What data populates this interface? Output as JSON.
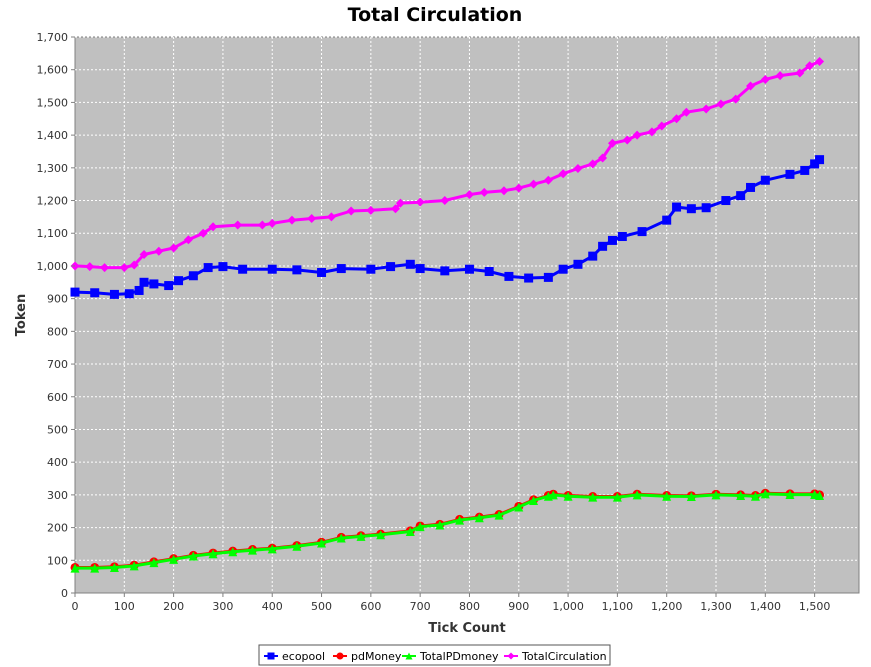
{
  "chart_data": {
    "type": "line",
    "title": "Total Circulation",
    "xlabel": "Tick Count",
    "ylabel": "Token",
    "xlim": [
      0,
      1590
    ],
    "ylim": [
      0,
      1700
    ],
    "xticks": [
      "0",
      "100",
      "200",
      "300",
      "400",
      "500",
      "600",
      "700",
      "800",
      "900",
      "1,000",
      "1,100",
      "1,200",
      "1,300",
      "1,400",
      "1,500"
    ],
    "yticks": [
      "0",
      "100",
      "200",
      "300",
      "400",
      "500",
      "600",
      "700",
      "800",
      "900",
      "1,000",
      "1,100",
      "1,200",
      "1,300",
      "1,400",
      "1,500",
      "1,600",
      "1,700"
    ],
    "grid": true,
    "legend": "bottom",
    "series": [
      {
        "name": "ecopool",
        "color": "#0000ff",
        "marker": "square",
        "points": [
          [
            0,
            920
          ],
          [
            40,
            918
          ],
          [
            80,
            913
          ],
          [
            110,
            915
          ],
          [
            130,
            925
          ],
          [
            140,
            950
          ],
          [
            160,
            945
          ],
          [
            190,
            940
          ],
          [
            210,
            955
          ],
          [
            240,
            970
          ],
          [
            270,
            995
          ],
          [
            300,
            998
          ],
          [
            340,
            990
          ],
          [
            400,
            990
          ],
          [
            450,
            988
          ],
          [
            500,
            980
          ],
          [
            540,
            992
          ],
          [
            600,
            990
          ],
          [
            640,
            998
          ],
          [
            680,
            1005
          ],
          [
            700,
            992
          ],
          [
            750,
            985
          ],
          [
            800,
            990
          ],
          [
            840,
            983
          ],
          [
            880,
            968
          ],
          [
            920,
            963
          ],
          [
            960,
            965
          ],
          [
            990,
            990
          ],
          [
            1020,
            1005
          ],
          [
            1050,
            1030
          ],
          [
            1070,
            1060
          ],
          [
            1090,
            1078
          ],
          [
            1110,
            1090
          ],
          [
            1150,
            1105
          ],
          [
            1200,
            1140
          ],
          [
            1220,
            1180
          ],
          [
            1250,
            1175
          ],
          [
            1280,
            1178
          ],
          [
            1320,
            1200
          ],
          [
            1350,
            1215
          ],
          [
            1370,
            1240
          ],
          [
            1400,
            1262
          ],
          [
            1450,
            1280
          ],
          [
            1480,
            1292
          ],
          [
            1500,
            1312
          ],
          [
            1510,
            1325
          ]
        ]
      },
      {
        "name": "pdMoney",
        "color": "#ff0000",
        "marker": "circle",
        "points": [
          [
            0,
            78
          ],
          [
            40,
            78
          ],
          [
            80,
            80
          ],
          [
            120,
            85
          ],
          [
            160,
            95
          ],
          [
            200,
            105
          ],
          [
            240,
            115
          ],
          [
            280,
            122
          ],
          [
            320,
            128
          ],
          [
            360,
            133
          ],
          [
            400,
            137
          ],
          [
            450,
            145
          ],
          [
            500,
            155
          ],
          [
            540,
            170
          ],
          [
            580,
            175
          ],
          [
            620,
            180
          ],
          [
            680,
            190
          ],
          [
            700,
            205
          ],
          [
            740,
            210
          ],
          [
            780,
            225
          ],
          [
            820,
            232
          ],
          [
            860,
            240
          ],
          [
            900,
            265
          ],
          [
            930,
            285
          ],
          [
            960,
            298
          ],
          [
            970,
            302
          ],
          [
            1000,
            298
          ],
          [
            1050,
            295
          ],
          [
            1100,
            295
          ],
          [
            1140,
            302
          ],
          [
            1200,
            298
          ],
          [
            1250,
            297
          ],
          [
            1300,
            302
          ],
          [
            1350,
            300
          ],
          [
            1380,
            298
          ],
          [
            1400,
            305
          ],
          [
            1450,
            303
          ],
          [
            1500,
            303
          ],
          [
            1510,
            300
          ]
        ]
      },
      {
        "name": "TotalPDmoney",
        "color": "#00ff00",
        "marker": "triangle",
        "points": [
          [
            0,
            76
          ],
          [
            40,
            76
          ],
          [
            80,
            78
          ],
          [
            120,
            83
          ],
          [
            160,
            93
          ],
          [
            200,
            103
          ],
          [
            240,
            113
          ],
          [
            280,
            120
          ],
          [
            320,
            126
          ],
          [
            360,
            131
          ],
          [
            400,
            135
          ],
          [
            450,
            143
          ],
          [
            500,
            153
          ],
          [
            540,
            168
          ],
          [
            580,
            173
          ],
          [
            620,
            178
          ],
          [
            680,
            188
          ],
          [
            700,
            203
          ],
          [
            740,
            208
          ],
          [
            780,
            223
          ],
          [
            820,
            230
          ],
          [
            860,
            238
          ],
          [
            900,
            263
          ],
          [
            930,
            283
          ],
          [
            960,
            296
          ],
          [
            970,
            300
          ],
          [
            1000,
            296
          ],
          [
            1050,
            293
          ],
          [
            1100,
            293
          ],
          [
            1140,
            300
          ],
          [
            1200,
            296
          ],
          [
            1250,
            295
          ],
          [
            1300,
            300
          ],
          [
            1350,
            298
          ],
          [
            1380,
            296
          ],
          [
            1400,
            303
          ],
          [
            1450,
            301
          ],
          [
            1500,
            301
          ],
          [
            1510,
            298
          ]
        ]
      },
      {
        "name": "TotalCirculation",
        "color": "#ff00ff",
        "marker": "diamond",
        "points": [
          [
            0,
            1000
          ],
          [
            30,
            998
          ],
          [
            60,
            995
          ],
          [
            100,
            995
          ],
          [
            120,
            1003
          ],
          [
            140,
            1035
          ],
          [
            170,
            1045
          ],
          [
            200,
            1055
          ],
          [
            230,
            1080
          ],
          [
            260,
            1100
          ],
          [
            280,
            1120
          ],
          [
            330,
            1125
          ],
          [
            380,
            1125
          ],
          [
            400,
            1130
          ],
          [
            440,
            1140
          ],
          [
            480,
            1145
          ],
          [
            520,
            1150
          ],
          [
            560,
            1168
          ],
          [
            600,
            1170
          ],
          [
            650,
            1175
          ],
          [
            660,
            1192
          ],
          [
            700,
            1195
          ],
          [
            750,
            1200
          ],
          [
            800,
            1218
          ],
          [
            830,
            1225
          ],
          [
            870,
            1230
          ],
          [
            900,
            1238
          ],
          [
            930,
            1250
          ],
          [
            960,
            1262
          ],
          [
            990,
            1282
          ],
          [
            1020,
            1298
          ],
          [
            1050,
            1312
          ],
          [
            1070,
            1330
          ],
          [
            1090,
            1375
          ],
          [
            1120,
            1385
          ],
          [
            1140,
            1400
          ],
          [
            1170,
            1410
          ],
          [
            1190,
            1428
          ],
          [
            1220,
            1450
          ],
          [
            1240,
            1470
          ],
          [
            1280,
            1480
          ],
          [
            1310,
            1495
          ],
          [
            1340,
            1510
          ],
          [
            1370,
            1550
          ],
          [
            1400,
            1570
          ],
          [
            1430,
            1582
          ],
          [
            1470,
            1590
          ],
          [
            1490,
            1612
          ],
          [
            1510,
            1625
          ]
        ]
      }
    ]
  }
}
